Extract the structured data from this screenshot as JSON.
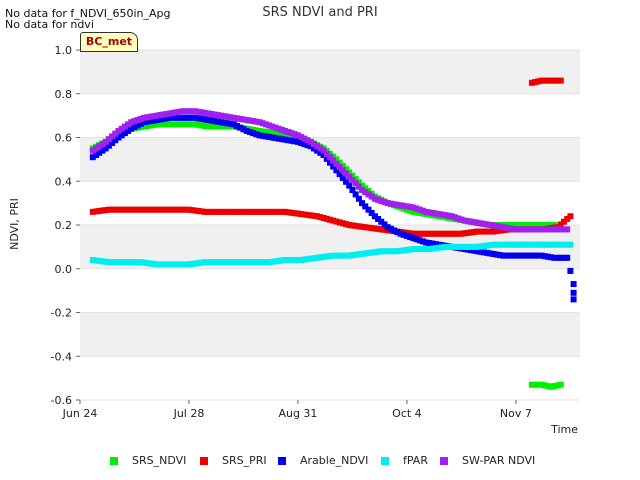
{
  "notes": {
    "line1": "No data for f_NDVI_650in_Apg",
    "line2": "No data for ndvi"
  },
  "badge": "BC_met",
  "chart_data": {
    "type": "scatter",
    "title": "SRS NDVI and PRI",
    "xlabel": "Time",
    "ylabel": "NDVI, PRI",
    "ylim": [
      -0.6,
      1.0
    ],
    "yticks": [
      "-0.6",
      "-0.4",
      "-0.2",
      "0.0",
      "0.2",
      "0.4",
      "0.6",
      "0.8",
      "1.0"
    ],
    "xticks": [
      "Jun 24",
      "Jul 28",
      "Aug 31",
      "Oct 4",
      "Nov 7"
    ],
    "xlim": [
      "Jun 24",
      "Nov 27"
    ],
    "grid": true,
    "legend": "bottom",
    "series": [
      {
        "name": "SRS_NDVI",
        "color": "#00ee00",
        "points": [
          [
            "Jun 28",
            0.55
          ],
          [
            "Jul 2",
            0.58
          ],
          [
            "Jul 6",
            0.61
          ],
          [
            "Jul 10",
            0.64
          ],
          [
            "Jul 14",
            0.65
          ],
          [
            "Jul 18",
            0.66
          ],
          [
            "Jul 22",
            0.66
          ],
          [
            "Jul 26",
            0.66
          ],
          [
            "Jul 30",
            0.66
          ],
          [
            "Aug 3",
            0.65
          ],
          [
            "Aug 7",
            0.65
          ],
          [
            "Aug 11",
            0.65
          ],
          [
            "Aug 15",
            0.64
          ],
          [
            "Aug 19",
            0.63
          ],
          [
            "Aug 23",
            0.62
          ],
          [
            "Aug 27",
            0.61
          ],
          [
            "Aug 31",
            0.6
          ],
          [
            "Sep 4",
            0.58
          ],
          [
            "Sep 8",
            0.55
          ],
          [
            "Sep 12",
            0.5
          ],
          [
            "Sep 16",
            0.44
          ],
          [
            "Sep 20",
            0.38
          ],
          [
            "Sep 24",
            0.33
          ],
          [
            "Sep 28",
            0.3
          ],
          [
            "Oct 2",
            0.28
          ],
          [
            "Oct 6",
            0.26
          ],
          [
            "Oct 10",
            0.25
          ],
          [
            "Oct 14",
            0.24
          ],
          [
            "Oct 18",
            0.23
          ],
          [
            "Oct 22",
            0.22
          ],
          [
            "Oct 26",
            0.21
          ],
          [
            "Oct 30",
            0.2
          ],
          [
            "Nov 3",
            0.2
          ],
          [
            "Nov 7",
            0.2
          ],
          [
            "Nov 11",
            0.2
          ],
          [
            "Nov 15",
            0.2
          ],
          [
            "Nov 19",
            0.2
          ],
          [
            "Nov 12",
            -0.53
          ],
          [
            "Nov 15",
            -0.53
          ],
          [
            "Nov 18",
            -0.54
          ],
          [
            "Nov 21",
            -0.53
          ]
        ]
      },
      {
        "name": "SRS_PRI",
        "color": "#ee0000",
        "points": [
          [
            "Jun 28",
            0.26
          ],
          [
            "Jul 3",
            0.27
          ],
          [
            "Jul 8",
            0.27
          ],
          [
            "Jul 13",
            0.27
          ],
          [
            "Jul 18",
            0.27
          ],
          [
            "Jul 23",
            0.27
          ],
          [
            "Jul 28",
            0.27
          ],
          [
            "Aug 2",
            0.26
          ],
          [
            "Aug 7",
            0.26
          ],
          [
            "Aug 12",
            0.26
          ],
          [
            "Aug 17",
            0.26
          ],
          [
            "Aug 22",
            0.26
          ],
          [
            "Aug 27",
            0.26
          ],
          [
            "Sep 1",
            0.25
          ],
          [
            "Sep 6",
            0.24
          ],
          [
            "Sep 11",
            0.22
          ],
          [
            "Sep 16",
            0.2
          ],
          [
            "Sep 21",
            0.19
          ],
          [
            "Sep 26",
            0.18
          ],
          [
            "Oct 1",
            0.17
          ],
          [
            "Oct 6",
            0.16
          ],
          [
            "Oct 11",
            0.16
          ],
          [
            "Oct 16",
            0.16
          ],
          [
            "Oct 21",
            0.16
          ],
          [
            "Oct 26",
            0.17
          ],
          [
            "Oct 31",
            0.17
          ],
          [
            "Nov 5",
            0.18
          ],
          [
            "Nov 10",
            0.18
          ],
          [
            "Nov 15",
            0.18
          ],
          [
            "Nov 20",
            0.19
          ],
          [
            "Nov 24",
            0.24
          ],
          [
            "Nov 12",
            0.85
          ],
          [
            "Nov 15",
            0.86
          ],
          [
            "Nov 18",
            0.86
          ],
          [
            "Nov 21",
            0.86
          ]
        ]
      },
      {
        "name": "Arable_NDVI",
        "color": "#0000ee",
        "points": [
          [
            "Jun 28",
            0.51
          ],
          [
            "Jul 2",
            0.55
          ],
          [
            "Jul 6",
            0.6
          ],
          [
            "Jul 10",
            0.64
          ],
          [
            "Jul 14",
            0.67
          ],
          [
            "Jul 18",
            0.68
          ],
          [
            "Jul 22",
            0.69
          ],
          [
            "Jul 26",
            0.69
          ],
          [
            "Jul 30",
            0.69
          ],
          [
            "Aug 3",
            0.68
          ],
          [
            "Aug 7",
            0.67
          ],
          [
            "Aug 11",
            0.66
          ],
          [
            "Aug 15",
            0.63
          ],
          [
            "Aug 19",
            0.61
          ],
          [
            "Aug 23",
            0.6
          ],
          [
            "Aug 27",
            0.59
          ],
          [
            "Aug 31",
            0.58
          ],
          [
            "Sep 4",
            0.56
          ],
          [
            "Sep 8",
            0.52
          ],
          [
            "Sep 12",
            0.45
          ],
          [
            "Sep 16",
            0.38
          ],
          [
            "Sep 20",
            0.3
          ],
          [
            "Sep 24",
            0.24
          ],
          [
            "Sep 28",
            0.19
          ],
          [
            "Oct 2",
            0.16
          ],
          [
            "Oct 6",
            0.14
          ],
          [
            "Oct 10",
            0.12
          ],
          [
            "Oct 14",
            0.11
          ],
          [
            "Oct 18",
            0.1
          ],
          [
            "Oct 22",
            0.09
          ],
          [
            "Oct 26",
            0.08
          ],
          [
            "Oct 30",
            0.07
          ],
          [
            "Nov 3",
            0.06
          ],
          [
            "Nov 7",
            0.06
          ],
          [
            "Nov 11",
            0.06
          ],
          [
            "Nov 15",
            0.06
          ],
          [
            "Nov 19",
            0.05
          ],
          [
            "Nov 23",
            0.05
          ],
          [
            "Nov 25",
            -0.07
          ],
          [
            "Nov 25",
            -0.11
          ],
          [
            "Nov 25",
            -0.14
          ]
        ]
      },
      {
        "name": "fPAR",
        "color": "#00eeee",
        "points": [
          [
            "Jun 28",
            0.04
          ],
          [
            "Jul 3",
            0.03
          ],
          [
            "Jul 8",
            0.03
          ],
          [
            "Jul 13",
            0.03
          ],
          [
            "Jul 18",
            0.02
          ],
          [
            "Jul 23",
            0.02
          ],
          [
            "Jul 28",
            0.02
          ],
          [
            "Aug 2",
            0.03
          ],
          [
            "Aug 7",
            0.03
          ],
          [
            "Aug 12",
            0.03
          ],
          [
            "Aug 17",
            0.03
          ],
          [
            "Aug 22",
            0.03
          ],
          [
            "Aug 27",
            0.04
          ],
          [
            "Sep 1",
            0.04
          ],
          [
            "Sep 6",
            0.05
          ],
          [
            "Sep 11",
            0.06
          ],
          [
            "Sep 16",
            0.06
          ],
          [
            "Sep 21",
            0.07
          ],
          [
            "Sep 26",
            0.08
          ],
          [
            "Oct 1",
            0.08
          ],
          [
            "Oct 6",
            0.09
          ],
          [
            "Oct 11",
            0.09
          ],
          [
            "Oct 16",
            0.1
          ],
          [
            "Oct 21",
            0.1
          ],
          [
            "Oct 26",
            0.1
          ],
          [
            "Oct 31",
            0.11
          ],
          [
            "Nov 5",
            0.11
          ],
          [
            "Nov 10",
            0.11
          ],
          [
            "Nov 15",
            0.11
          ],
          [
            "Nov 20",
            0.11
          ],
          [
            "Nov 24",
            0.11
          ]
        ]
      },
      {
        "name": "SW-PAR NDVI",
        "color": "#a020f0",
        "points": [
          [
            "Jun 28",
            0.54
          ],
          [
            "Jul 2",
            0.58
          ],
          [
            "Jul 6",
            0.63
          ],
          [
            "Jul 10",
            0.67
          ],
          [
            "Jul 14",
            0.69
          ],
          [
            "Jul 18",
            0.7
          ],
          [
            "Jul 22",
            0.71
          ],
          [
            "Jul 26",
            0.72
          ],
          [
            "Jul 30",
            0.72
          ],
          [
            "Aug 3",
            0.71
          ],
          [
            "Aug 7",
            0.7
          ],
          [
            "Aug 11",
            0.69
          ],
          [
            "Aug 15",
            0.68
          ],
          [
            "Aug 19",
            0.67
          ],
          [
            "Aug 23",
            0.65
          ],
          [
            "Aug 27",
            0.63
          ],
          [
            "Aug 31",
            0.61
          ],
          [
            "Sep 4",
            0.58
          ],
          [
            "Sep 8",
            0.54
          ],
          [
            "Sep 12",
            0.48
          ],
          [
            "Sep 16",
            0.42
          ],
          [
            "Sep 20",
            0.36
          ],
          [
            "Sep 24",
            0.32
          ],
          [
            "Sep 28",
            0.3
          ],
          [
            "Oct 2",
            0.29
          ],
          [
            "Oct 6",
            0.28
          ],
          [
            "Oct 10",
            0.26
          ],
          [
            "Oct 14",
            0.25
          ],
          [
            "Oct 18",
            0.24
          ],
          [
            "Oct 22",
            0.22
          ],
          [
            "Oct 26",
            0.21
          ],
          [
            "Oct 30",
            0.2
          ],
          [
            "Nov 3",
            0.19
          ],
          [
            "Nov 7",
            0.18
          ],
          [
            "Nov 11",
            0.18
          ],
          [
            "Nov 15",
            0.18
          ],
          [
            "Nov 19",
            0.18
          ],
          [
            "Nov 23",
            0.18
          ]
        ]
      }
    ]
  }
}
